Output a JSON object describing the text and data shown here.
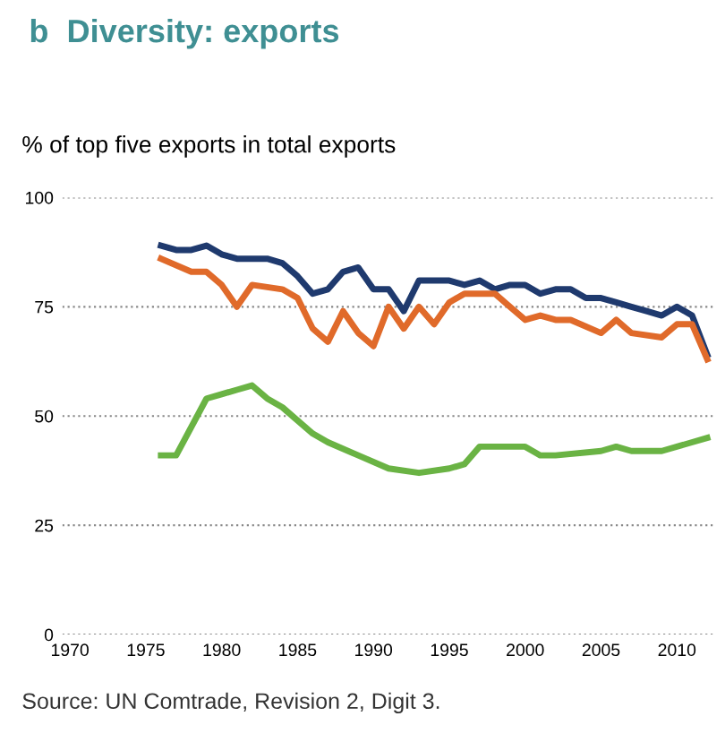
{
  "chart_data": {
    "type": "line",
    "title": "b  Diversity: exports",
    "ylabel": "% of top five exports in total exports",
    "annotations": [
      "Source: UN Comtrade, Revision 2, Digit 3."
    ],
    "series": [
      {
        "color": "#1f3a6e",
        "x": [
          1976,
          1977,
          1978,
          1979,
          1980,
          1981,
          1982,
          1983,
          1984,
          1985,
          1986,
          1987,
          1988,
          1989,
          1990,
          1991,
          1992,
          1993,
          1994,
          1995,
          1996,
          1997,
          1998,
          1999,
          2000,
          2001,
          2002,
          2003,
          2004,
          2005,
          2006,
          2007,
          2008,
          2009,
          2010,
          2011,
          2012
        ],
        "values": [
          89,
          88,
          88,
          89,
          87,
          86,
          86,
          86,
          85,
          82,
          78,
          79,
          83,
          84,
          79,
          79,
          74,
          81,
          81,
          81,
          80,
          81,
          79,
          80,
          80,
          78,
          79,
          79,
          77,
          77,
          76,
          75,
          74,
          73,
          75,
          73,
          64
        ]
      },
      {
        "color": "#e06a2a",
        "x": [
          1976,
          1978,
          1979,
          1980,
          1981,
          1982,
          1984,
          1985,
          1986,
          1987,
          1988,
          1989,
          1990,
          1991,
          1992,
          1993,
          1994,
          1995,
          1996,
          1998,
          1999,
          2000,
          2001,
          2002,
          2003,
          2005,
          2006,
          2007,
          2009,
          2010,
          2011,
          2012
        ],
        "values": [
          86,
          83,
          83,
          80,
          75,
          80,
          79,
          77,
          70,
          67,
          74,
          69,
          66,
          75,
          70,
          75,
          71,
          76,
          78,
          78,
          75,
          72,
          73,
          72,
          72,
          69,
          72,
          69,
          68,
          71,
          71,
          63
        ]
      },
      {
        "color": "#6ab344",
        "x": [
          1976,
          1977,
          1979,
          1980,
          1981,
          1982,
          1983,
          1984,
          1986,
          1987,
          1989,
          1991,
          1993,
          1995,
          1996,
          1997,
          1999,
          2000,
          2001,
          2002,
          2005,
          2006,
          2007,
          2009,
          2011,
          2012
        ],
        "values": [
          41,
          41,
          54,
          55,
          56,
          57,
          54,
          52,
          46,
          44,
          41,
          38,
          37,
          38,
          39,
          43,
          43,
          43,
          41,
          41,
          42,
          43,
          42,
          42,
          44,
          45
        ]
      }
    ],
    "xlim": [
      1969.5,
      2012.5
    ],
    "xticks": [
      1970,
      1975,
      1980,
      1985,
      1990,
      1995,
      2000,
      2005,
      2010
    ],
    "ylim": [
      0,
      100
    ],
    "yticks": [
      0,
      25,
      50,
      75,
      100
    ],
    "grid": "y",
    "line_style": "solid",
    "marker": "none"
  }
}
